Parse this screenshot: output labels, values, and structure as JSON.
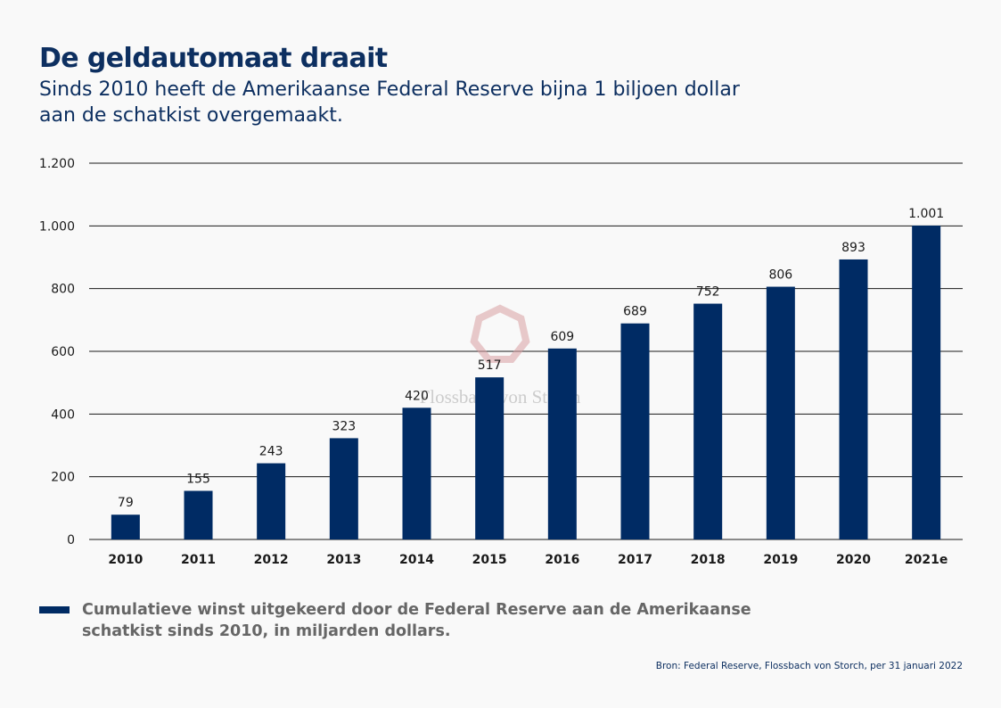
{
  "title": "De geldautomaat draait",
  "subtitle": "Sinds 2010 heeft de Amerikaanse Federal Reserve bijna 1 biljoen dollar aan de schatkist overgemaakt.",
  "watermark": "Flossbach von Storch",
  "source": "Bron: Federal Reserve, Flossbach von Storch, per 31 januari 2022",
  "colors": {
    "bar": "#002b64",
    "title": "#0d2f60",
    "legend_text": "#666666",
    "watermark": "#d9a0a3"
  },
  "chart_data": {
    "type": "bar",
    "categories": [
      "2010",
      "2011",
      "2012",
      "2013",
      "2014",
      "2015",
      "2016",
      "2017",
      "2018",
      "2019",
      "2020",
      "2021e"
    ],
    "series": [
      {
        "name": "Cumulatieve winst uitgekeerd door de Federal Reserve aan de Amerikaanse schatkist sinds 2010, in miljarden dollars.",
        "values": [
          79,
          155,
          243,
          323,
          420,
          517,
          609,
          689,
          752,
          806,
          893,
          1001
        ],
        "data_labels": [
          "79",
          "155",
          "243",
          "323",
          "420",
          "517",
          "609",
          "689",
          "752",
          "806",
          "893",
          "1.001"
        ]
      }
    ],
    "ylim": [
      0,
      1200
    ],
    "yticks": [
      0,
      200,
      400,
      600,
      800,
      1000,
      1200
    ],
    "ytick_labels": [
      "0",
      "200",
      "400",
      "600",
      "800",
      "1.000",
      "1.200"
    ],
    "xlabel": "",
    "ylabel": "",
    "grid": true,
    "legend_position": "bottom-left"
  }
}
